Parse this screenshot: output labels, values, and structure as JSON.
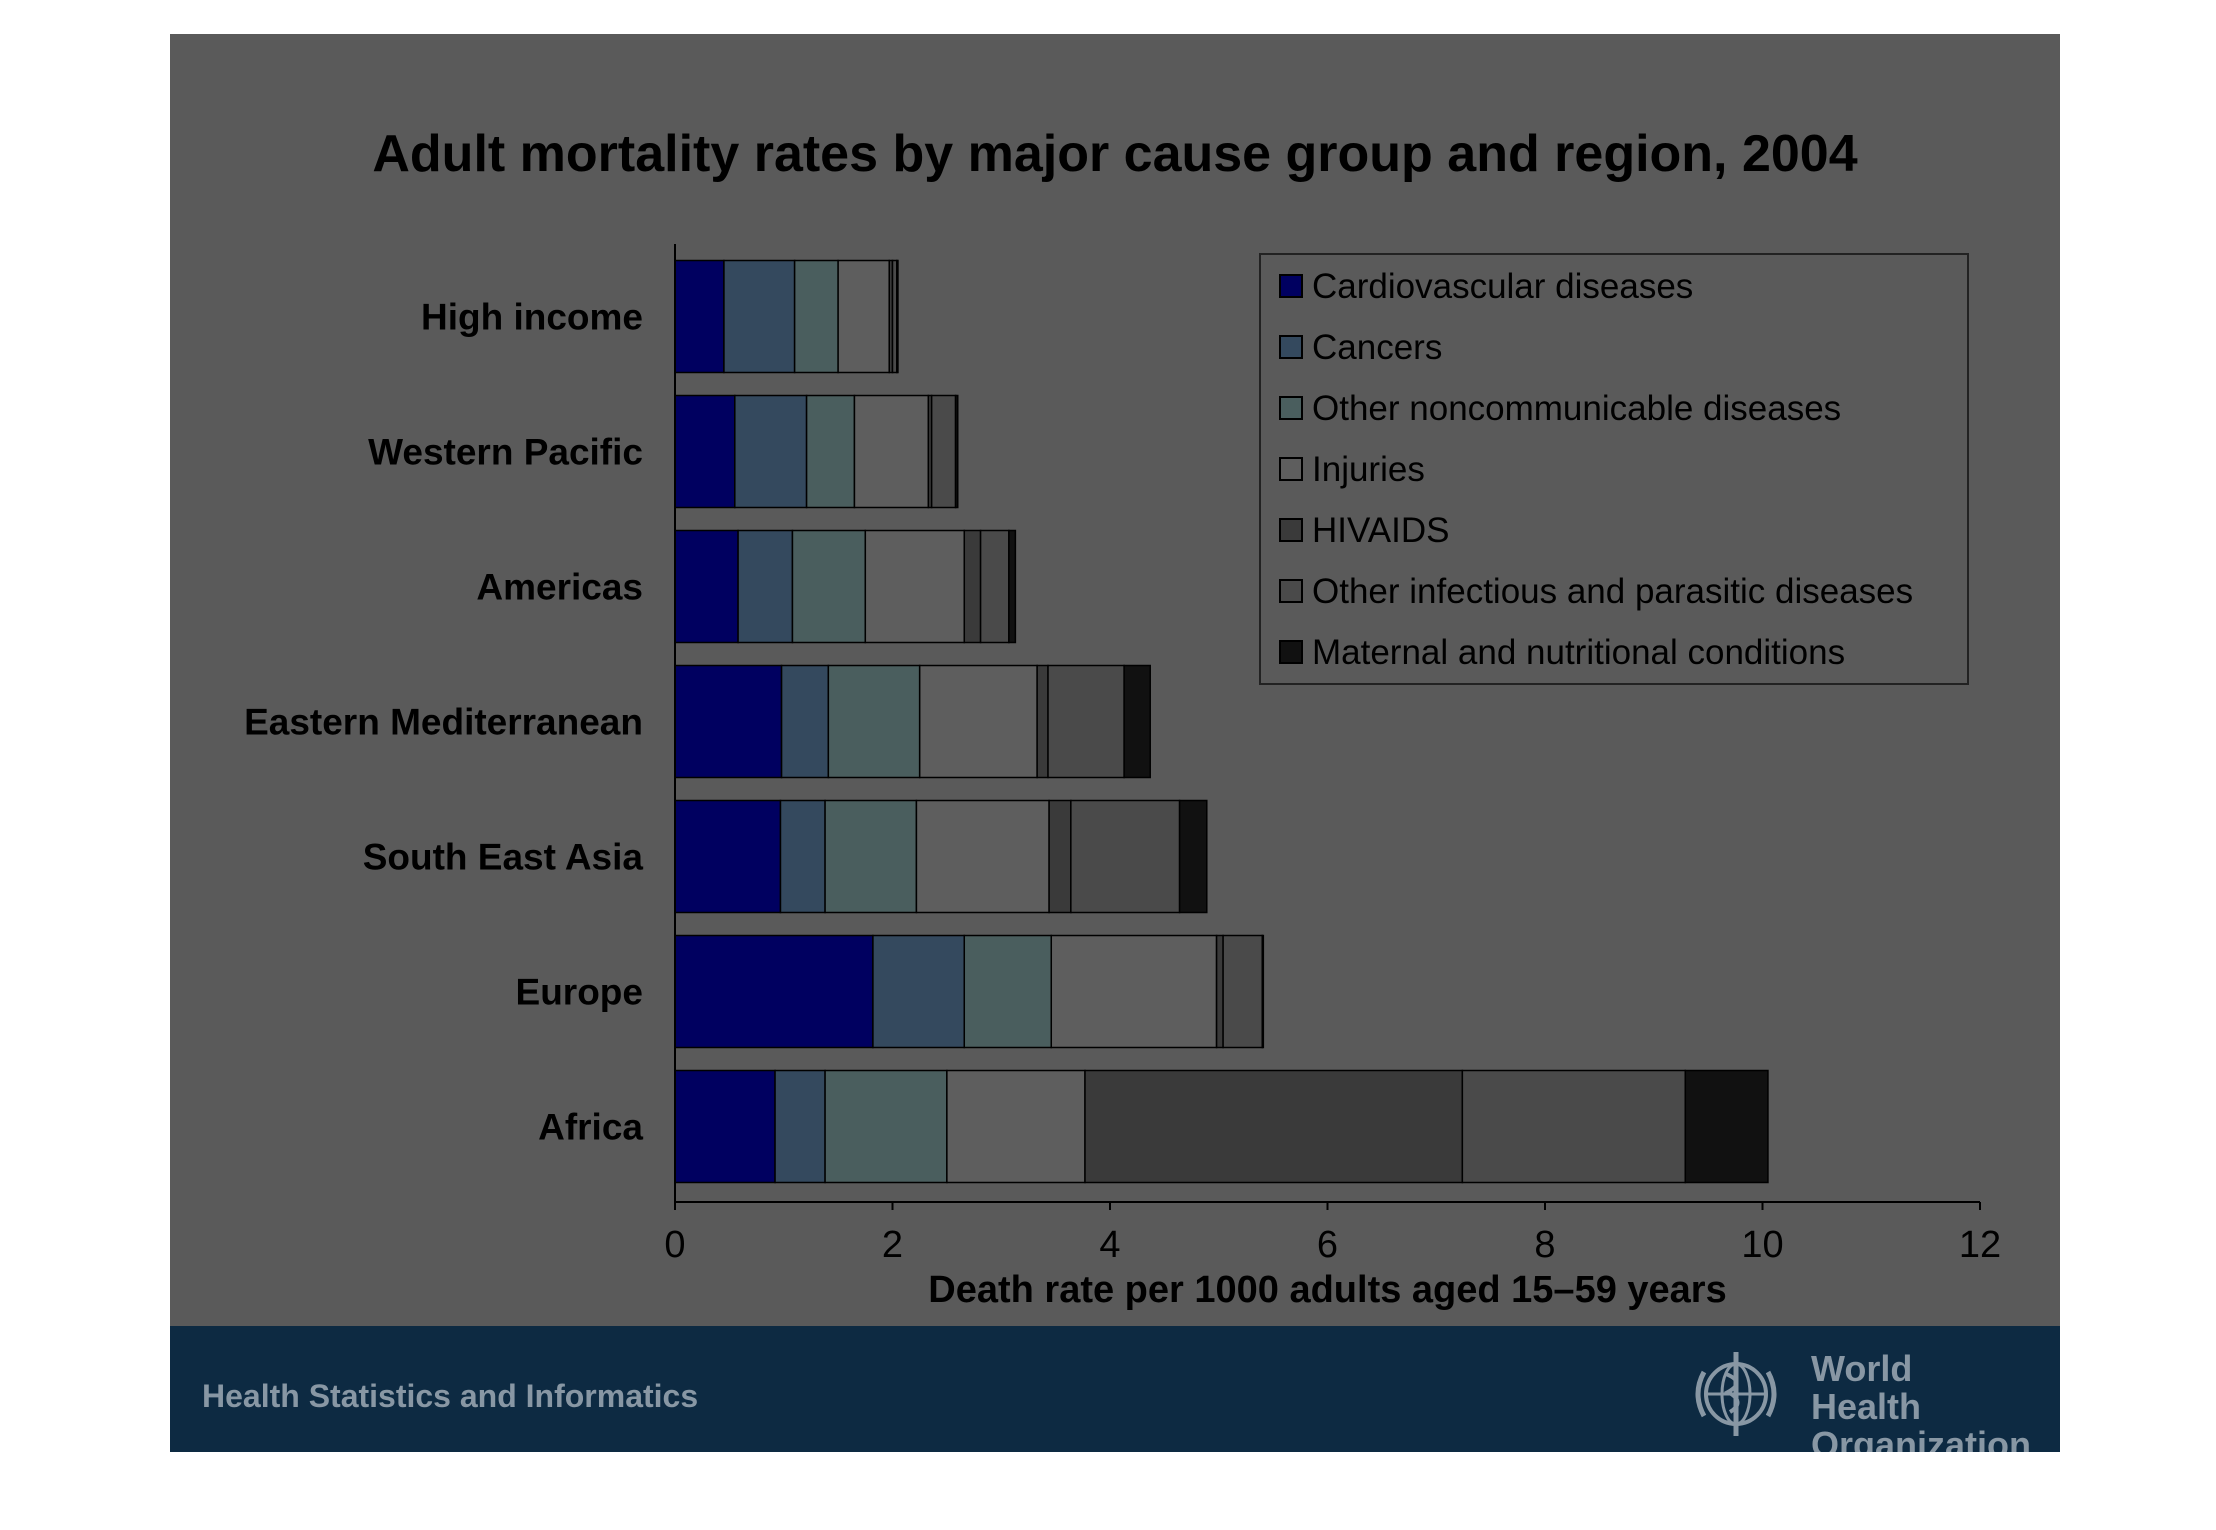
{
  "slide": {
    "title": "Adult mortality rates by major cause group and region, 2004",
    "footer_text": "Health Statistics and Informatics",
    "logo_text": [
      "World Health",
      "Organization"
    ]
  },
  "chart_data": {
    "type": "bar",
    "orientation": "horizontal",
    "stacked": true,
    "title": "Adult mortality rates by major cause group and region, 2004",
    "xlabel": "Death rate per 1000 adults aged 15–59 years",
    "ylabel": "",
    "xlim": [
      0,
      12
    ],
    "xticks": [
      0,
      2,
      4,
      6,
      8,
      10,
      12
    ],
    "grid": false,
    "legend_position": "top-right",
    "categories": [
      "High income",
      "Western Pacific",
      "Americas",
      "Eastern Mediterranean",
      "South East Asia",
      "Europe",
      "Africa"
    ],
    "series": [
      {
        "name": "Cardiovascular diseases",
        "color": "#000060",
        "values": [
          0.45,
          0.55,
          0.58,
          0.98,
          0.97,
          1.82,
          0.92
        ]
      },
      {
        "name": "Cancers",
        "color": "#34495e",
        "values": [
          0.65,
          0.66,
          0.5,
          0.43,
          0.41,
          0.84,
          0.46
        ]
      },
      {
        "name": "Other noncommunicable diseases",
        "color": "#4a5e5e",
        "values": [
          0.4,
          0.44,
          0.67,
          0.84,
          0.84,
          0.8,
          1.12
        ]
      },
      {
        "name": "Injuries",
        "color": "#5e5e5e",
        "values": [
          0.47,
          0.68,
          0.91,
          1.08,
          1.22,
          1.52,
          1.27
        ]
      },
      {
        "name": "HIVAIDS",
        "color": "#3a3a3a",
        "values": [
          0.03,
          0.03,
          0.15,
          0.1,
          0.2,
          0.06,
          3.47
        ]
      },
      {
        "name": "Other infectious and parasitic diseases",
        "color": "#4a4a4a",
        "values": [
          0.04,
          0.22,
          0.26,
          0.7,
          1.0,
          0.36,
          2.05
        ]
      },
      {
        "name": "Maternal and nutritional conditions",
        "color": "#111111",
        "values": [
          0.01,
          0.02,
          0.06,
          0.24,
          0.25,
          0.01,
          0.76
        ]
      }
    ]
  }
}
